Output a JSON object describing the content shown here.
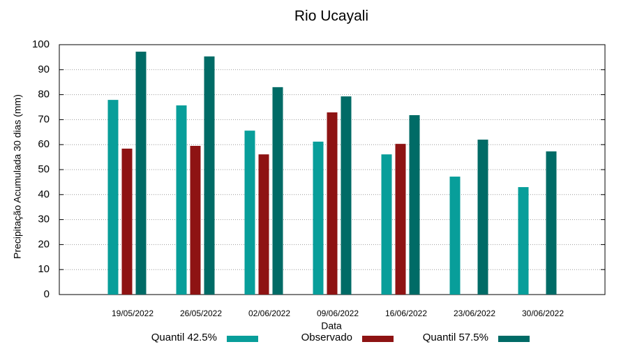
{
  "chart_data": {
    "type": "bar",
    "title": "Rio Ucayali",
    "x_label": "Data",
    "y_label": "Precipitação Acumulada 30 dias (mm)",
    "categories": [
      "19/05/2022",
      "26/05/2022",
      "02/06/2022",
      "09/06/2022",
      "16/06/2022",
      "23/06/2022",
      "30/06/2022"
    ],
    "series": [
      {
        "name": "Quantil 42.5%",
        "color": "#089e9a",
        "values": [
          77.9,
          75.7,
          65.6,
          61.2,
          56.1,
          47.2,
          43.0
        ]
      },
      {
        "name": "Observado",
        "color": "#8e1313",
        "values": [
          58.4,
          59.5,
          56.1,
          72.9,
          60.3,
          null,
          null
        ]
      },
      {
        "name": "Quantil 57.5%",
        "color": "#006b66",
        "values": [
          97.2,
          95.3,
          83.0,
          79.3,
          71.8,
          62.0,
          57.3
        ]
      }
    ],
    "ylim": [
      0,
      100
    ],
    "yticks": [
      0,
      10,
      20,
      30,
      40,
      50,
      60,
      70,
      80,
      90,
      100
    ],
    "grid": true,
    "legend": "bottom"
  }
}
